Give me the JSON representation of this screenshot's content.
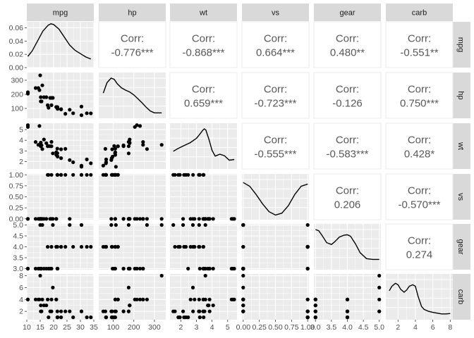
{
  "chart_data": {
    "type": "scatter",
    "chart_kind": "pairs-matrix",
    "variables": [
      "mpg",
      "hp",
      "wt",
      "vs",
      "gear",
      "carb"
    ],
    "correlation_label": "Corr:",
    "correlations": {
      "0-1": "-0.776***",
      "0-2": "-0.868***",
      "0-3": "0.664***",
      "0-4": "0.480**",
      "0-5": "-0.551**",
      "1-2": "0.659***",
      "1-3": "-0.723***",
      "1-4": "-0.126",
      "1-5": "0.750***",
      "2-3": "-0.555***",
      "2-4": "-0.583***",
      "2-5": "0.428*",
      "3-4": "0.206",
      "3-5": "-0.570***",
      "4-5": "0.274"
    },
    "axes": {
      "mpg": {
        "range": [
          10,
          35
        ],
        "ticks": [
          10,
          15,
          20,
          25,
          30,
          35
        ],
        "tick_labels": [
          "10",
          "15",
          "20",
          "25",
          "30",
          "35"
        ]
      },
      "hp": {
        "range": [
          30,
          355
        ],
        "ticks": [
          100,
          200,
          300
        ],
        "tick_labels": [
          "100",
          "200",
          "300"
        ]
      },
      "wt": {
        "range": [
          1.3,
          5.6
        ],
        "ticks": [
          2,
          3,
          4,
          5
        ],
        "tick_labels": [
          "2",
          "3",
          "4",
          "5"
        ]
      },
      "vs": {
        "range": [
          -0.02,
          1.02
        ],
        "ticks": [
          0,
          0.25,
          0.5,
          0.75,
          1
        ],
        "tick_labels": [
          "0.00",
          "0.25",
          "0.50",
          "0.75",
          "1.00"
        ]
      },
      "gear": {
        "range": [
          2.95,
          5.05
        ],
        "ticks": [
          3,
          3.5,
          4,
          4.5,
          5
        ],
        "tick_labels": [
          "3.0",
          "3.5",
          "4.0",
          "4.5",
          "5.0"
        ]
      },
      "carb": {
        "range": [
          0.6,
          8.3
        ],
        "ticks": [
          2,
          4,
          6,
          8
        ],
        "tick_labels": [
          "2",
          "4",
          "6",
          "8"
        ]
      }
    },
    "density_ylim": [
      0,
      0.069
    ],
    "density_ticks": [
      0,
      0.02,
      0.04,
      0.06
    ],
    "density_tick_labels": [
      "0.00",
      "0.02",
      "0.04",
      "0.06"
    ],
    "densities": {
      "mpg": {
        "x": [
          10.4,
          12,
          14,
          16,
          18,
          19,
          20,
          22,
          24,
          26,
          28,
          30,
          32,
          33.9
        ],
        "y": [
          0.017,
          0.025,
          0.04,
          0.055,
          0.064,
          0.066,
          0.065,
          0.058,
          0.046,
          0.034,
          0.026,
          0.021,
          0.016,
          0.013
        ]
      },
      "hp": {
        "x": [
          52,
          70,
          90,
          105,
          120,
          140,
          160,
          180,
          200,
          220,
          240,
          260,
          280,
          300,
          335
        ],
        "y": [
          0.6,
          0.88,
          1.0,
          0.97,
          0.85,
          0.74,
          0.68,
          0.63,
          0.55,
          0.45,
          0.34,
          0.22,
          0.12,
          0.07,
          0.07
        ]
      },
      "wt": {
        "x": [
          1.513,
          1.8,
          2.2,
          2.6,
          3.0,
          3.2,
          3.4,
          3.5,
          3.6,
          3.8,
          4.0,
          4.2,
          4.5,
          4.8,
          5.1,
          5.424
        ],
        "y": [
          0.4,
          0.47,
          0.55,
          0.63,
          0.75,
          0.85,
          0.96,
          1.0,
          0.97,
          0.72,
          0.42,
          0.27,
          0.32,
          0.28,
          0.16,
          0.18
        ]
      },
      "vs": {
        "x": [
          0,
          0.1,
          0.2,
          0.3,
          0.4,
          0.5,
          0.6,
          0.7,
          0.8,
          0.9,
          1.0
        ],
        "y": [
          0.92,
          0.82,
          0.6,
          0.35,
          0.14,
          0.05,
          0.1,
          0.3,
          0.6,
          0.82,
          0.88
        ]
      },
      "gear": {
        "x": [
          3.0,
          3.1,
          3.2,
          3.35,
          3.5,
          3.6,
          3.75,
          3.9,
          4.0,
          4.1,
          4.25,
          4.4,
          4.6,
          4.8,
          5.0
        ],
        "y": [
          1.0,
          0.97,
          0.85,
          0.65,
          0.6,
          0.67,
          0.8,
          0.85,
          0.86,
          0.82,
          0.62,
          0.38,
          0.22,
          0.2,
          0.2
        ]
      },
      "carb": {
        "x": [
          1,
          1.3,
          1.7,
          2.0,
          2.3,
          2.7,
          3.0,
          3.3,
          3.7,
          4.0,
          4.3,
          4.7,
          5.0,
          5.5,
          6,
          6.5,
          7,
          7.5,
          8
        ],
        "y": [
          0.7,
          0.82,
          0.9,
          0.86,
          0.74,
          0.66,
          0.72,
          0.82,
          0.86,
          0.82,
          0.56,
          0.28,
          0.2,
          0.15,
          0.12,
          0.1,
          0.08,
          0.08,
          0.09
        ]
      }
    },
    "observations": {
      "mpg": [
        21.0,
        21.0,
        22.8,
        21.4,
        18.7,
        18.1,
        14.3,
        24.4,
        22.8,
        19.2,
        17.8,
        16.4,
        17.3,
        15.2,
        10.4,
        10.4,
        14.7,
        32.4,
        30.4,
        33.9,
        21.5,
        15.5,
        15.2,
        13.3,
        19.2,
        27.3,
        26.0,
        30.4,
        15.8,
        19.7,
        15.0,
        21.4
      ],
      "hp": [
        110,
        110,
        93,
        110,
        175,
        105,
        245,
        62,
        95,
        123,
        123,
        180,
        180,
        180,
        205,
        215,
        230,
        66,
        52,
        65,
        97,
        150,
        150,
        245,
        175,
        66,
        91,
        113,
        264,
        175,
        335,
        109
      ],
      "wt": [
        2.62,
        2.875,
        2.32,
        3.215,
        3.44,
        3.46,
        3.57,
        3.19,
        3.15,
        3.44,
        3.44,
        4.07,
        3.73,
        3.78,
        5.25,
        5.424,
        5.345,
        2.2,
        1.615,
        1.835,
        2.465,
        3.52,
        3.435,
        3.84,
        3.845,
        1.935,
        2.14,
        1.513,
        3.17,
        2.77,
        3.57,
        2.78
      ],
      "vs": [
        0,
        0,
        1,
        1,
        0,
        1,
        0,
        1,
        1,
        1,
        1,
        0,
        0,
        0,
        0,
        0,
        0,
        1,
        1,
        1,
        1,
        0,
        0,
        0,
        0,
        1,
        0,
        1,
        0,
        0,
        0,
        1
      ],
      "gear": [
        4,
        4,
        4,
        3,
        3,
        3,
        3,
        4,
        4,
        4,
        4,
        3,
        3,
        3,
        3,
        3,
        3,
        4,
        4,
        4,
        3,
        3,
        3,
        3,
        3,
        4,
        5,
        5,
        5,
        5,
        5,
        4
      ],
      "carb": [
        4,
        4,
        1,
        1,
        2,
        1,
        4,
        2,
        2,
        4,
        4,
        3,
        3,
        3,
        4,
        4,
        4,
        1,
        2,
        1,
        1,
        2,
        2,
        4,
        2,
        1,
        2,
        2,
        4,
        6,
        8,
        2
      ]
    }
  }
}
